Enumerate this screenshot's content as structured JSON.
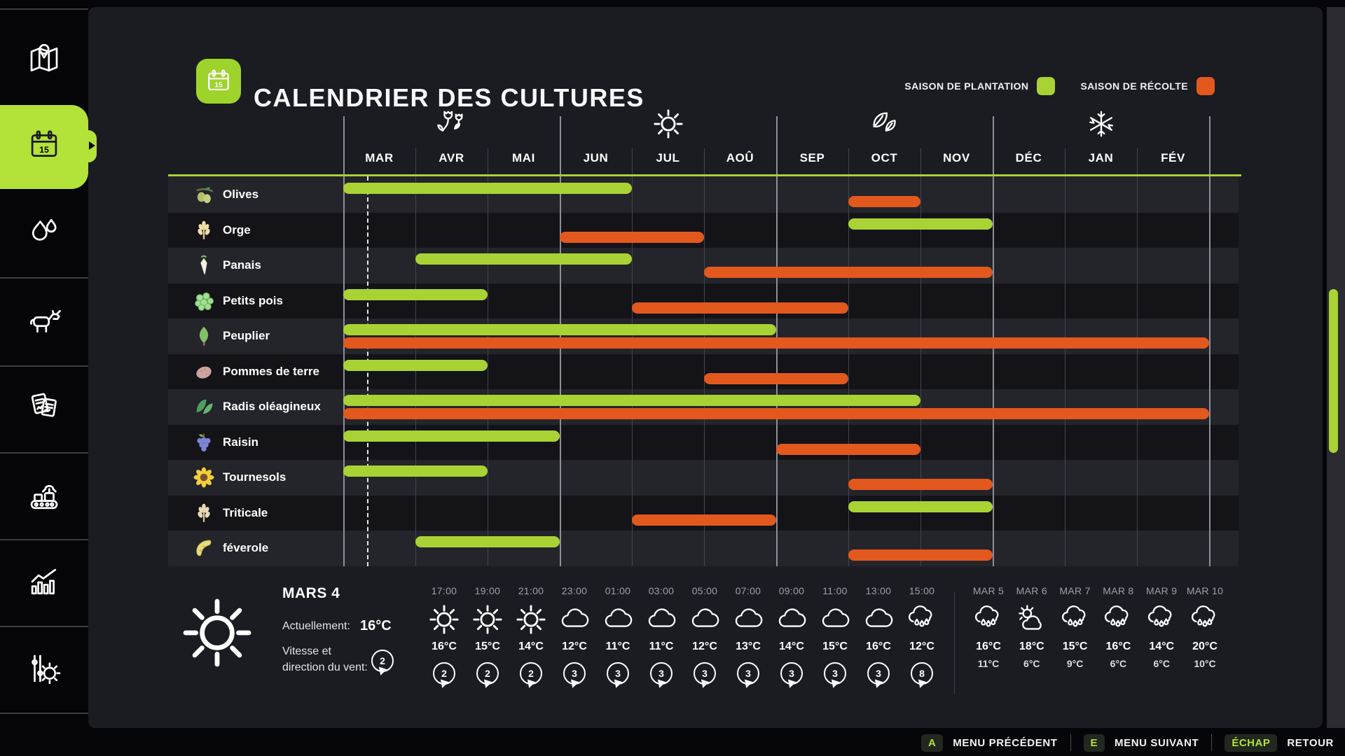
{
  "header": {
    "title": "CALENDRIER DES CULTURES",
    "icon": "calendar-tile"
  },
  "legend": {
    "planting_label": "SAISON DE PLANTATION",
    "planting_color": "#a9d334",
    "harvest_label": "SAISON DE RÉCOLTE",
    "harvest_color": "#e2581d"
  },
  "sidebar": {
    "items": [
      {
        "name": "map",
        "icon": "map",
        "selected": false
      },
      {
        "name": "calendar",
        "icon": "calendar",
        "selected": true
      },
      {
        "name": "weather",
        "icon": "water",
        "selected": false
      },
      {
        "name": "animals",
        "icon": "cow",
        "selected": false
      },
      {
        "name": "contracts",
        "icon": "contracts",
        "selected": false
      },
      {
        "name": "production",
        "icon": "production",
        "selected": false
      },
      {
        "name": "statistics",
        "icon": "stats",
        "selected": false
      },
      {
        "name": "settings",
        "icon": "settings",
        "selected": false
      }
    ]
  },
  "calendar": {
    "months": [
      "MAR",
      "AVR",
      "MAI",
      "JUN",
      "JUL",
      "AOÛ",
      "SEP",
      "OCT",
      "NOV",
      "DÉC",
      "JAN",
      "FÉV"
    ],
    "seasons": [
      {
        "icon": "flower",
        "month_index": 1
      },
      {
        "icon": "sun",
        "month_index": 4
      },
      {
        "icon": "leaves",
        "month_index": 7
      },
      {
        "icon": "snowflake",
        "month_index": 10
      }
    ],
    "rows": [
      {
        "crop": "Olives",
        "icon": "olives",
        "plant": [
          0,
          4
        ],
        "harvest": [
          7,
          8
        ]
      },
      {
        "crop": "Orge",
        "icon": "barley",
        "plant": [
          7,
          9
        ],
        "harvest": [
          3,
          5
        ]
      },
      {
        "crop": "Panais",
        "icon": "parsnip",
        "plant": [
          1,
          4
        ],
        "harvest": [
          5,
          9
        ]
      },
      {
        "crop": "Petits pois",
        "icon": "peas",
        "plant": [
          0,
          2
        ],
        "harvest": [
          4,
          7
        ]
      },
      {
        "crop": "Peuplier",
        "icon": "poplar",
        "plant": [
          0,
          6
        ],
        "harvest": [
          0,
          12
        ]
      },
      {
        "crop": "Pommes de terre",
        "icon": "potato",
        "plant": [
          0,
          2
        ],
        "harvest": [
          5,
          7
        ]
      },
      {
        "crop": "Radis oléagineux",
        "icon": "radish",
        "plant": [
          0,
          8
        ],
        "harvest": [
          0,
          12
        ]
      },
      {
        "crop": "Raisin",
        "icon": "grapes",
        "plant": [
          0,
          3
        ],
        "harvest": [
          6,
          8
        ]
      },
      {
        "crop": "Tournesols",
        "icon": "sunflower",
        "plant": [
          0,
          2
        ],
        "harvest": [
          7,
          9
        ]
      },
      {
        "crop": "Triticale",
        "icon": "triticale",
        "plant": [
          7,
          9
        ],
        "harvest": [
          4,
          6
        ]
      },
      {
        "crop": "féverole",
        "icon": "bean",
        "plant": [
          1,
          3
        ],
        "harvest": [
          7,
          9
        ]
      }
    ]
  },
  "weather": {
    "current": {
      "date": "MARS 4",
      "icon": "sun",
      "now_label": "Actuellement:",
      "now_temp": "16°C",
      "wind_label_line1": "Vitesse et",
      "wind_label_line2": "direction du vent:",
      "wind_value": "2"
    },
    "hourly": [
      {
        "time": "17:00",
        "icon": "sun",
        "temp": "16°C",
        "wind": "2"
      },
      {
        "time": "19:00",
        "icon": "sun",
        "temp": "15°C",
        "wind": "2"
      },
      {
        "time": "21:00",
        "icon": "sun",
        "temp": "14°C",
        "wind": "2"
      },
      {
        "time": "23:00",
        "icon": "cloud",
        "temp": "12°C",
        "wind": "3"
      },
      {
        "time": "01:00",
        "icon": "cloud",
        "temp": "11°C",
        "wind": "3"
      },
      {
        "time": "03:00",
        "icon": "cloud",
        "temp": "11°C",
        "wind": "3"
      },
      {
        "time": "05:00",
        "icon": "cloud",
        "temp": "12°C",
        "wind": "3"
      },
      {
        "time": "07:00",
        "icon": "cloud",
        "temp": "13°C",
        "wind": "3"
      },
      {
        "time": "09:00",
        "icon": "cloud",
        "temp": "14°C",
        "wind": "3"
      },
      {
        "time": "11:00",
        "icon": "cloud",
        "temp": "15°C",
        "wind": "3"
      },
      {
        "time": "13:00",
        "icon": "cloud",
        "temp": "16°C",
        "wind": "3"
      },
      {
        "time": "15:00",
        "icon": "rain",
        "temp": "12°C",
        "wind": "8"
      }
    ],
    "daily": [
      {
        "date": "MAR 5",
        "icon": "rain",
        "high": "16°C",
        "low": "11°C"
      },
      {
        "date": "MAR 6",
        "icon": "partly_sunny",
        "high": "18°C",
        "low": "6°C"
      },
      {
        "date": "MAR 7",
        "icon": "rain",
        "high": "15°C",
        "low": "9°C"
      },
      {
        "date": "MAR 8",
        "icon": "rain",
        "high": "16°C",
        "low": "6°C"
      },
      {
        "date": "MAR 9",
        "icon": "rain",
        "high": "14°C",
        "low": "6°C"
      },
      {
        "date": "MAR 10",
        "icon": "rain",
        "high": "20°C",
        "low": "10°C"
      }
    ]
  },
  "footer": {
    "items": [
      {
        "key": "A",
        "label": "MENU PRÉCÉDENT"
      },
      {
        "key": "E",
        "label": "MENU SUIVANT"
      },
      {
        "key": "ÉCHAP",
        "label": "RETOUR"
      }
    ]
  }
}
